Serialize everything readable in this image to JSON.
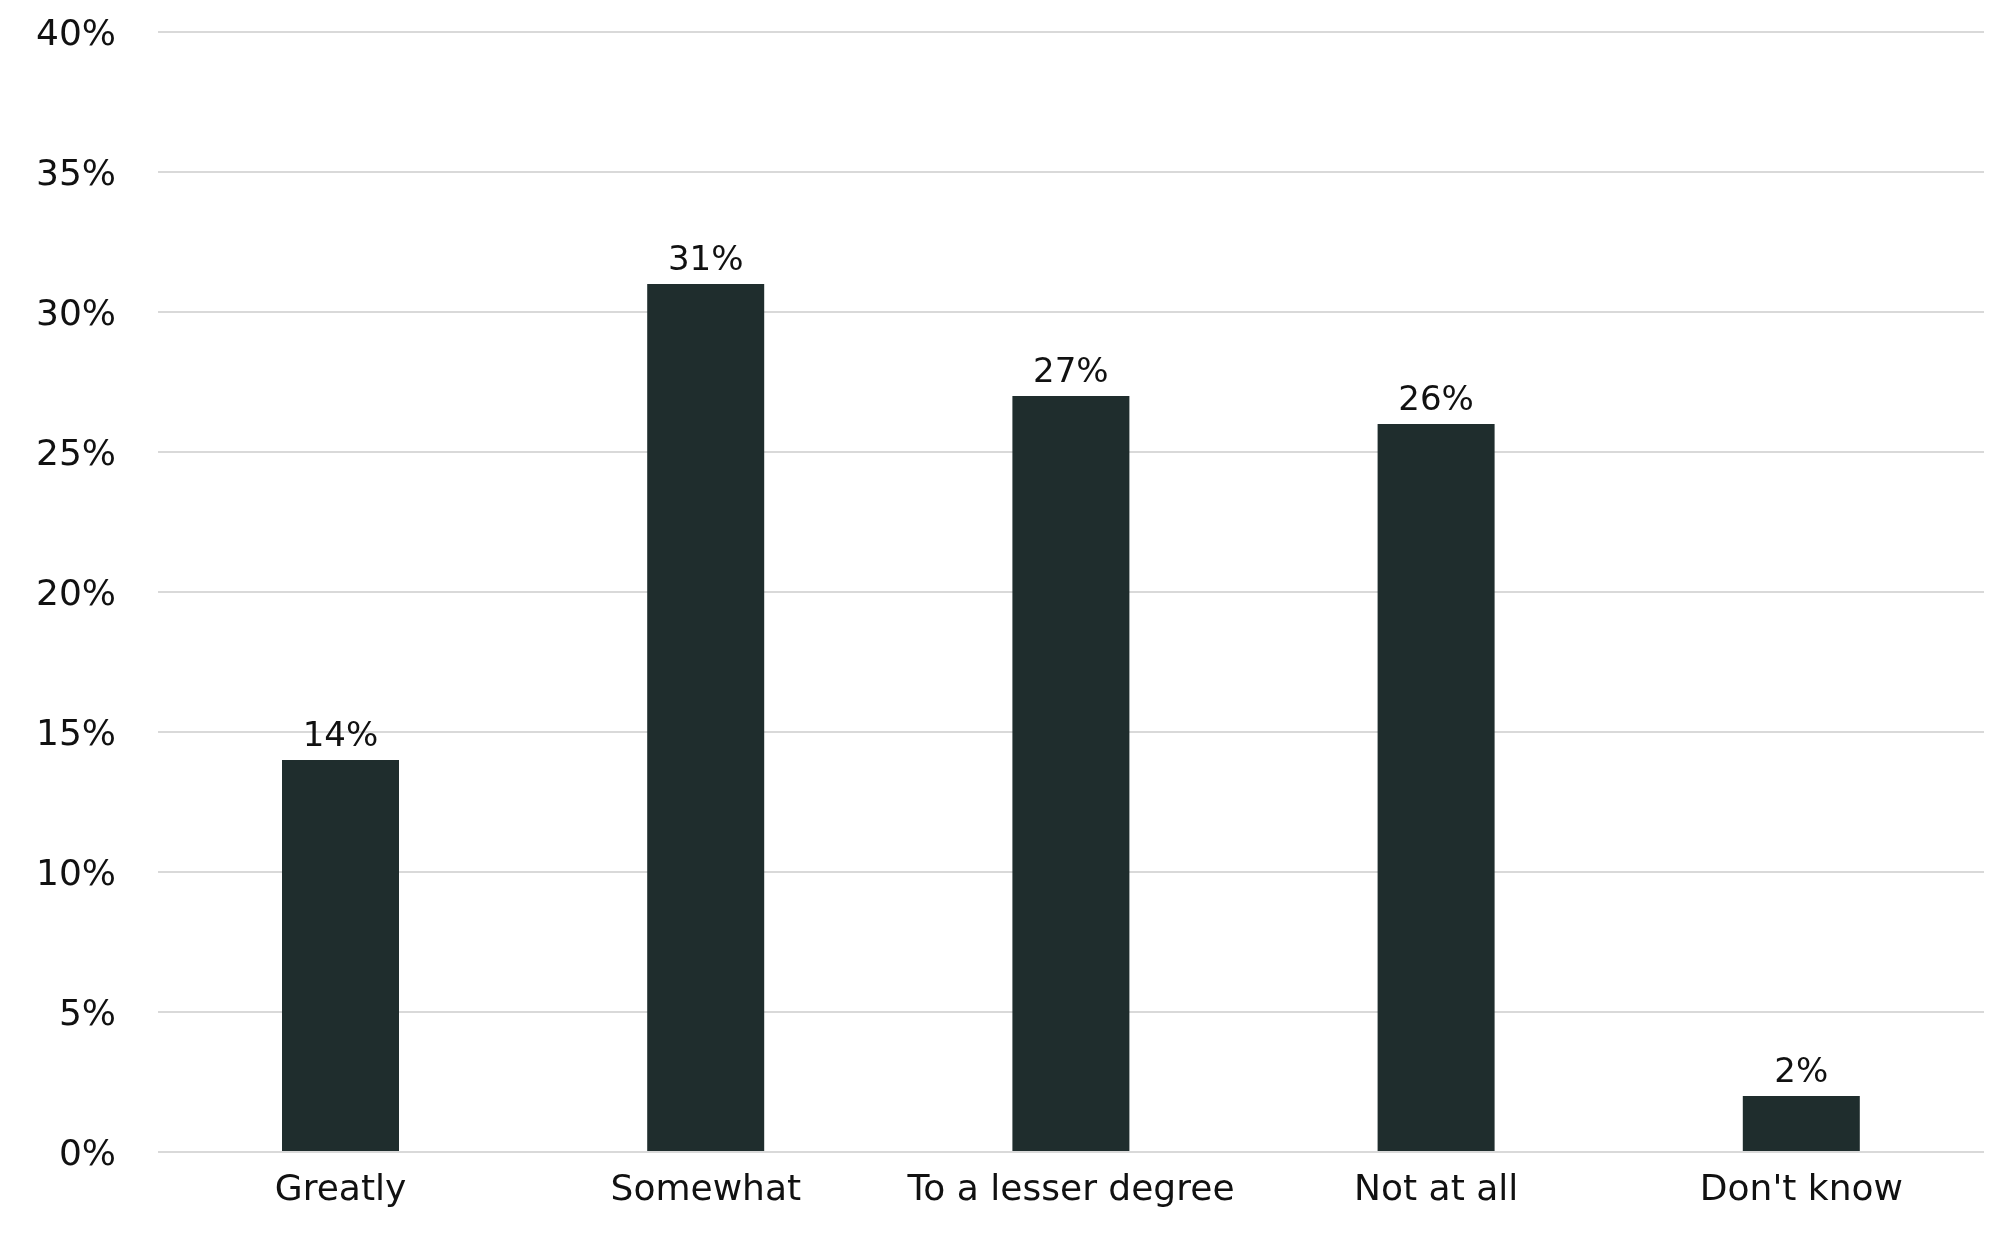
{
  "chart_data": {
    "type": "bar",
    "categories": [
      "Greatly",
      "Somewhat",
      "To a lesser degree",
      "Not at all",
      "Don't know"
    ],
    "values": [
      14,
      31,
      27,
      26,
      2
    ],
    "color": "#1f2d2d",
    "ylim": [
      0,
      40
    ],
    "yticks": [
      {
        "value": 0,
        "label": "0%"
      },
      {
        "value": 5,
        "label": "5%"
      },
      {
        "value": 10,
        "label": "10%"
      },
      {
        "value": 15,
        "label": "15%"
      },
      {
        "value": 20,
        "label": "20%"
      },
      {
        "value": 25,
        "label": "25%"
      },
      {
        "value": 30,
        "label": "30%"
      },
      {
        "value": 35,
        "label": "35%"
      },
      {
        "value": 40,
        "label": "40%"
      }
    ],
    "value_labels": [
      "14%",
      "31%",
      "27%",
      "26%",
      "2%"
    ],
    "grid": "y",
    "legend": false
  }
}
